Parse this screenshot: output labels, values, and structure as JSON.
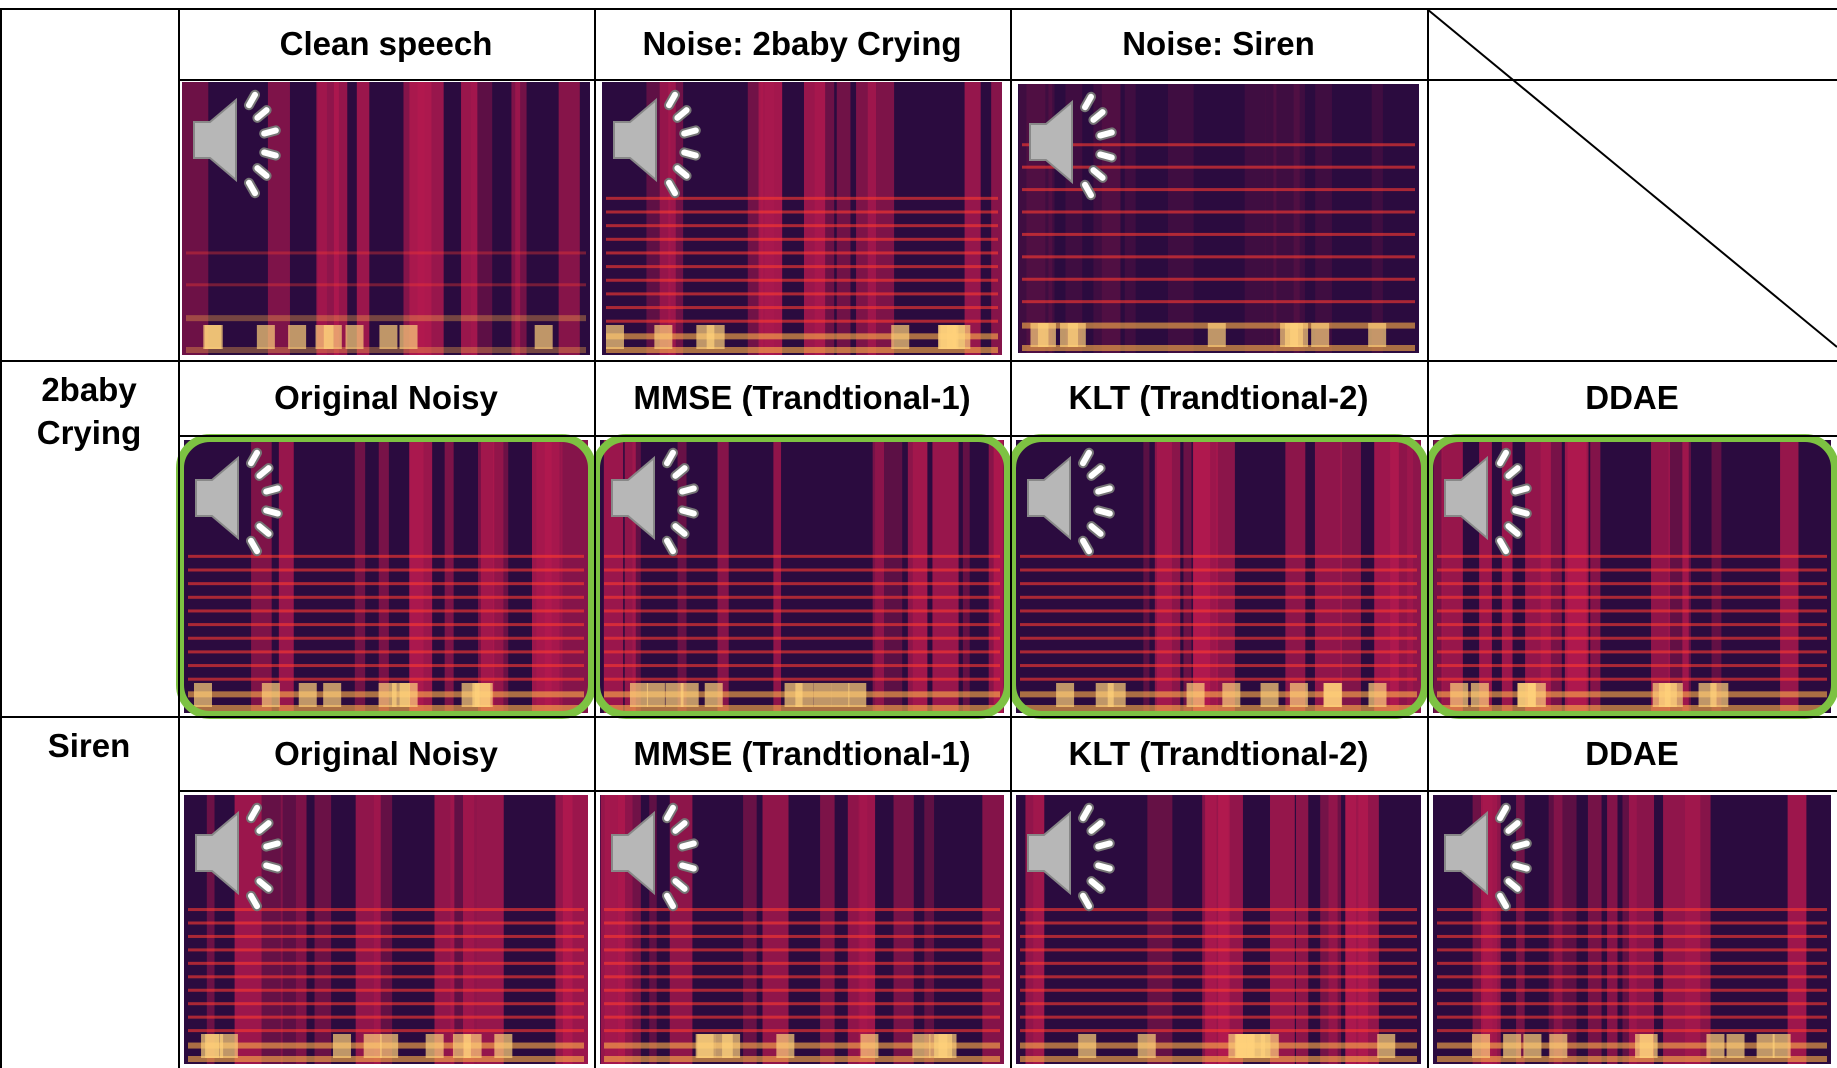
{
  "header_row": [
    "Clean speech",
    "Noise: 2baby Crying",
    "Noise: Siren"
  ],
  "rows": [
    {
      "label": "2baby Crying",
      "columns": [
        "Original Noisy",
        "MMSE (Trandtional-1)",
        "KLT (Trandtional-2)",
        "DDAE"
      ]
    },
    {
      "label": "Siren",
      "columns": [
        "Original Noisy",
        "MMSE (Trandtional-1)",
        "KLT (Trandtional-2)",
        "DDAE"
      ]
    }
  ]
}
